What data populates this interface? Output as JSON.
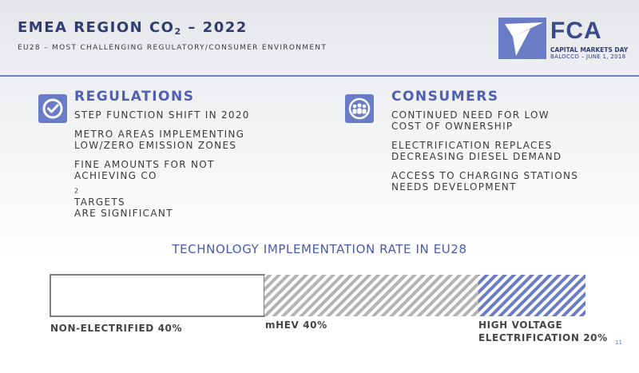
{
  "header": {
    "title_main": "EMEA REGION CO",
    "title_sub": "2",
    "title_tail": " – 2022",
    "subtitle": "EU28 – MOST CHALLENGING REGULATORY/CONSUMER ENVIRONMENT"
  },
  "logo": {
    "brand": "FCA",
    "event": "CAPITAL MARKETS DAY",
    "event_detail": "BALOCCO – JUNE 1, 2018"
  },
  "regulations": {
    "heading": "REGULATIONS",
    "icon": "checkmark-circle-icon",
    "items": [
      {
        "line1": "STEP FUNCTION SHIFT IN 2020"
      },
      {
        "line1": "METRO AREAS IMPLEMENTING",
        "line2": "LOW/ZERO EMISSION ZONES"
      },
      {
        "line1": "FINE AMOUNTS FOR NOT",
        "line2_main": "ACHIEVING CO",
        "line2_sub": "2",
        "line2_tail": " TARGETS",
        "line3": "ARE SIGNIFICANT"
      }
    ]
  },
  "consumers": {
    "heading": "CONSUMERS",
    "icon": "people-group-icon",
    "items": [
      {
        "line1": "CONTINUED NEED FOR LOW",
        "line2": "COST OF OWNERSHIP"
      },
      {
        "line1": "ELECTRIFICATION REPLACES",
        "line2": "DECREASING DIESEL DEMAND"
      },
      {
        "line1": "ACCESS TO CHARGING STATIONS",
        "line2": "NEEDS DEVELOPMENT"
      }
    ]
  },
  "chart_data": {
    "type": "bar",
    "title": "TECHNOLOGY IMPLEMENTATION RATE IN EU28",
    "categories": [
      "NON-ELECTRIFIED",
      "mHEV",
      "HIGH VOLTAGE ELECTRIFICATION"
    ],
    "values": [
      40,
      40,
      20
    ],
    "labels": [
      {
        "line1": "NON-ELECTRIFIED 40%"
      },
      {
        "line1": "mHEV 40%"
      },
      {
        "line1": "HIGH VOLTAGE",
        "line2": "ELECTRIFICATION 20%"
      }
    ],
    "colors": [
      "#ffffff",
      "#b3b3b3",
      "#6a7cc6"
    ]
  },
  "page_number": "11"
}
